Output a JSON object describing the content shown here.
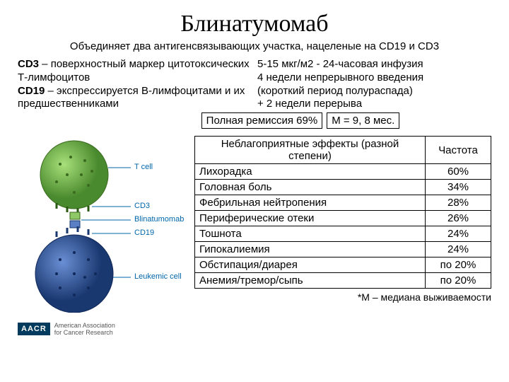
{
  "title": "Блинатумомаб",
  "subtitle": "Объединяет два антигенсвязывающих участка, нацеленые на CD19 и CD3",
  "desc_left_html": "<b>CD3</b> – поверхностный маркер цитотоксических Т-лимфоцитов<br><b>CD19</b> – экспрессируется В-лимфоцитами и их предшественниками",
  "desc_right": "5-15 мкг/м2 - 24-часовая инфузия\n4 недели непрерывного введения\n(короткий период полураспада)\n+ 2 недели перерыва",
  "box_remission": "Полная ремиссия 69%",
  "box_median": "М = 9, 8 мес.",
  "table": {
    "header_effect": "Неблагоприятные эффекты (разной степени)",
    "header_freq": "Частота",
    "rows": [
      {
        "e": "Лихорадка",
        "f": "60%"
      },
      {
        "e": "Головная боль",
        "f": "34%"
      },
      {
        "e": "Фебрильная нейтропения",
        "f": "28%"
      },
      {
        "e": "Периферические отеки",
        "f": "26%"
      },
      {
        "e": "Тошнота",
        "f": "24%"
      },
      {
        "e": "Гипокалиемия",
        "f": "24%"
      },
      {
        "e": "Обстипация/диарея",
        "f": "по 20%"
      },
      {
        "e": "Анемия/тремор/сыпь",
        "f": "по 20%"
      }
    ]
  },
  "footnote": "*М – медиана выживаемости",
  "diagram": {
    "tcell_color": "#6fbf44",
    "tcell_dark": "#4a8a2e",
    "leukemic_color": "#2e5aa8",
    "leukemic_dark": "#1a3870",
    "labels": {
      "tcell": "T cell",
      "cd3": "CD3",
      "blin": "Blinatumomab",
      "cd19": "CD19",
      "leuk": "Leukemic cell"
    }
  },
  "logo": {
    "text": "AACR",
    "sub": "American Association\nfor Cancer Research"
  }
}
